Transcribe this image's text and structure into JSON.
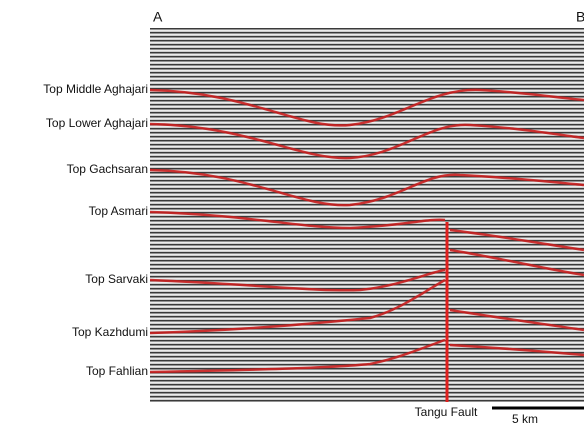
{
  "section": {
    "left_end": "A",
    "right_end": "B"
  },
  "horizons": [
    "Top Middle Aghajari",
    "Top Lower Aghajari",
    "Top Gachsaran",
    "Top Asmari",
    "Top Sarvaki",
    "Top Kazhdumi",
    "Top Fahlian"
  ],
  "fault": "Tangu Fault",
  "scale_bar": "5 km"
}
